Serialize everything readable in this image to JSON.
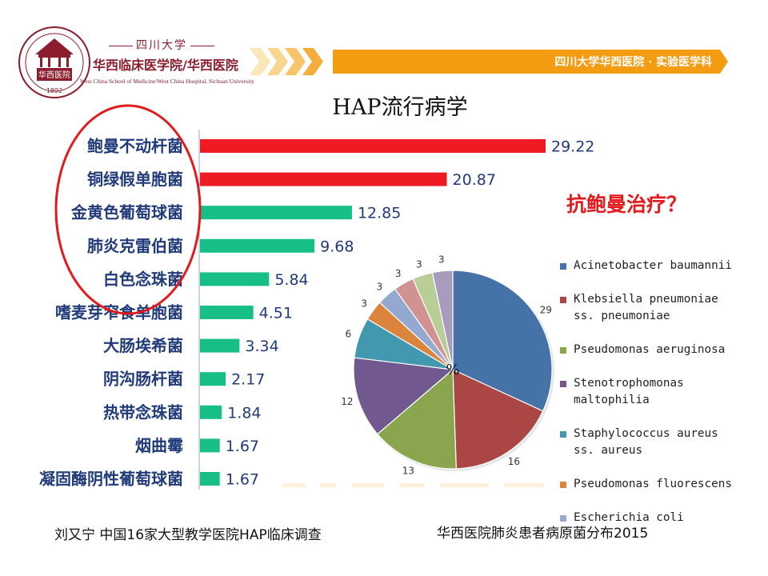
{
  "header": {
    "school_name": "四川大学",
    "school_full": "华西临床医学院/华西医院",
    "school_en": "West China School of Medicine/West China Hospital, Sichuan University",
    "logo_text": "华西医院",
    "logo_year": "1892",
    "banner_text": "四川大学华西医院 · 实验医学科"
  },
  "title": "HAP流行病学",
  "question": "抗鲍曼治疗？",
  "chart_data": [
    {
      "type": "bar",
      "orientation": "horizontal",
      "categories": [
        "鲍曼不动杆菌",
        "铜绿假单胞菌",
        "金黄色葡萄球菌",
        "肺炎克雷伯菌",
        "白色念珠菌",
        "嗜麦芽窄食单胞菌",
        "大肠埃希菌",
        "阴沟肠杆菌",
        "热带念珠菌",
        "烟曲霉",
        "凝固酶阴性葡萄球菌"
      ],
      "values": [
        29.22,
        20.87,
        12.85,
        9.68,
        5.84,
        4.51,
        3.34,
        2.17,
        1.84,
        1.67,
        1.67
      ],
      "value_labels": [
        "29.22",
        "20.87",
        "12.85",
        "9.68",
        "5.84",
        "4.51",
        "3.34",
        "2.17",
        "1.84",
        "1.67",
        "1.67"
      ],
      "bar_colors": [
        "#ee1b24",
        "#ee1b24",
        "#17bf86",
        "#17bf86",
        "#17bf86",
        "#17bf86",
        "#17bf86",
        "#17bf86",
        "#17bf86",
        "#17bf86",
        "#17bf86"
      ],
      "xlim": [
        0,
        30
      ],
      "highlighted_top_n": 5,
      "highlight_color": "#e31a1c",
      "caption": "刘又宁 中国16家大型教学医院HAP临床调查"
    },
    {
      "type": "pie",
      "center_label": "%",
      "labels": [
        "Acinetobacter baumannii",
        "Klebsiella pneumoniae ss. pneumoniae",
        "Pseudomonas aeruginosa",
        "Stenotrophomonas maltophilia",
        "Staphylococcus aureus ss. aureus",
        "Pseudomonas fluorescens",
        "Escherichia coli",
        "",
        "",
        ""
      ],
      "values": [
        29,
        16,
        13,
        12,
        6,
        3,
        3,
        3,
        3,
        3
      ],
      "value_labels": [
        "29",
        "16",
        "13",
        "12",
        "6",
        "3",
        "3",
        "3",
        "3",
        "3"
      ],
      "colors": [
        "#4572a7",
        "#aa4643",
        "#89a54e",
        "#71588f",
        "#4198af",
        "#db843d",
        "#93a9cf",
        "#d19392",
        "#b9cd96",
        "#a99bbd"
      ],
      "legend": [
        {
          "label": "Acinetobacter baumannii",
          "color": "#4572a7"
        },
        {
          "label": "Klebsiella pneumoniae\nss. pneumoniae",
          "color": "#aa4643"
        },
        {
          "label": "Pseudomonas aeruginosa",
          "color": "#89a54e"
        },
        {
          "label": "Stenotrophomonas\nmaltophilia",
          "color": "#71588f"
        },
        {
          "label": "Staphylococcus aureus\nss. aureus",
          "color": "#4198af"
        },
        {
          "label": "Pseudomonas fluorescens",
          "color": "#db843d"
        },
        {
          "label": "Escherichia coli",
          "color": "#93a9cf"
        }
      ],
      "legend_position": "right",
      "caption": "华西医院肺炎患者病原菌分布2015"
    }
  ]
}
